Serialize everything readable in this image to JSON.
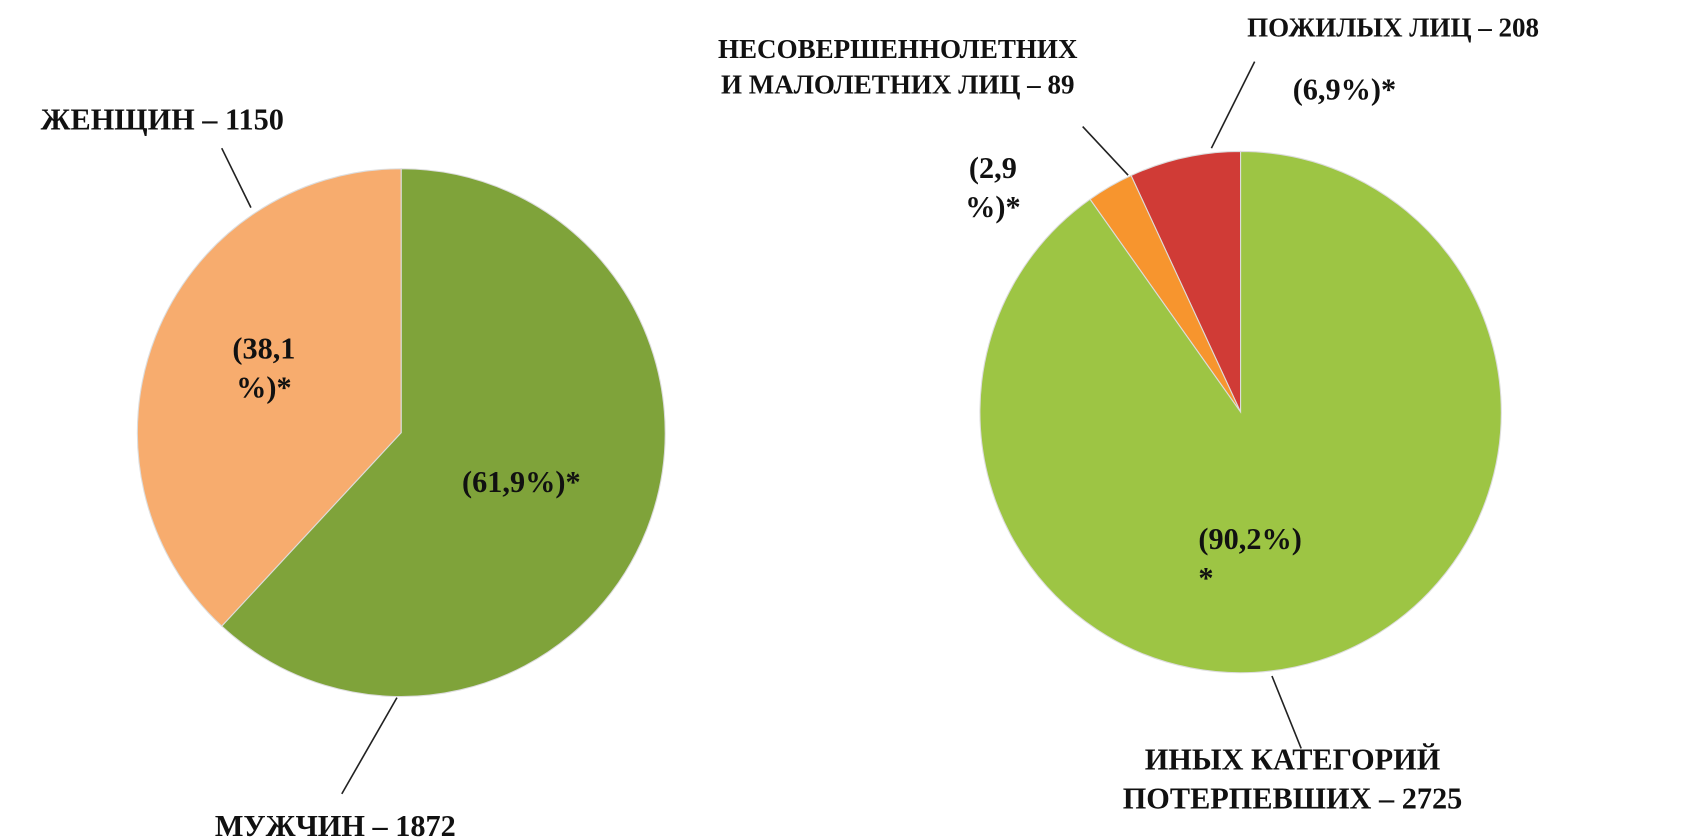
{
  "chart_data": [
    {
      "type": "pie",
      "categories": [
        "МУЖЧИН – 1872",
        "ЖЕНЩИН – 1150"
      ],
      "values": [
        61.9,
        38.1
      ],
      "value_labels": [
        "(61,9%)*",
        "(38,1\n%)*"
      ],
      "colors": [
        "#7fa33a",
        "#f7ac6e"
      ]
    },
    {
      "type": "pie",
      "categories": [
        "ИНЫХ КАТЕГОРИЙ ПОТЕРПЕВШИХ – 2725",
        "НЕСОВЕРШЕННОЛЕТНИХ\nИ МАЛОЛЕТНИХ ЛИЦ – 89",
        "ПОЖИЛЫХ ЛИЦ – 208"
      ],
      "values": [
        90.2,
        2.9,
        6.9
      ],
      "value_labels": [
        "(90,2%)\n*",
        "(2,9\n%)*",
        "(6,9%)*"
      ],
      "colors": [
        "#9dc544",
        "#f7952e",
        "#d03b36"
      ]
    }
  ]
}
